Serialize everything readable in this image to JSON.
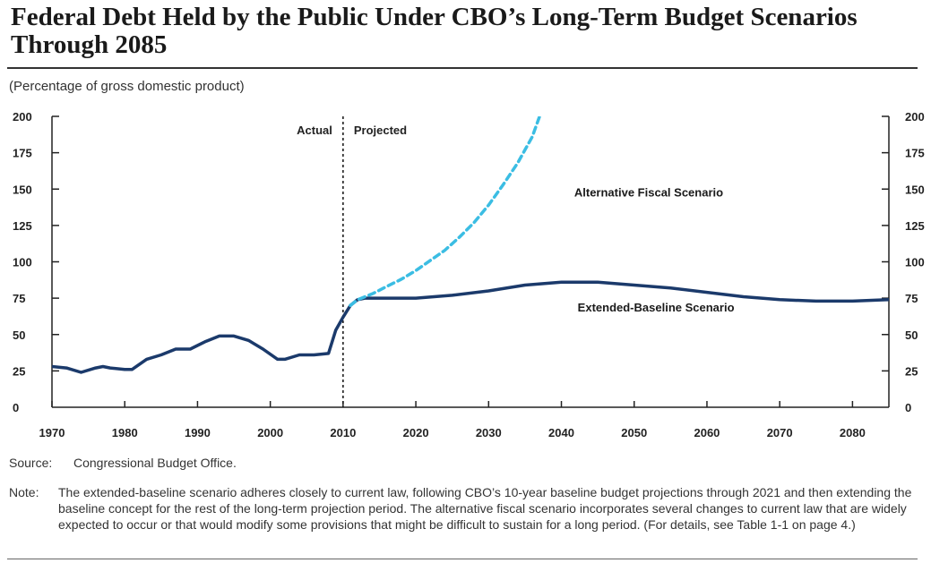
{
  "title": "Federal Debt Held by the Public Under CBO’s Long-Term Budget Scenarios Through 2085",
  "subtitle": "(Percentage of gross domestic product)",
  "source": {
    "label": "Source:",
    "text": "Congressional Budget Office."
  },
  "note": {
    "label": "Note:",
    "text": "The extended-baseline scenario adheres closely to current law, following CBO’s 10-year baseline budget projections through 2021 and then extending the baseline concept for the rest of the long-term projection period. The alternative fiscal scenario incorporates several changes to current law that are widely expected to occur or that would modify some provisions that might be difficult to sustain for a long period. (For details, see Table 1-1 on page 4.)"
  },
  "chart_data": {
    "type": "line",
    "title": "Federal Debt Held by the Public Under CBO’s Long-Term Budget Scenarios Through 2085",
    "ylabel": "(Percentage of gross domestic product)",
    "xlim": [
      1970,
      2085
    ],
    "ylim": [
      0,
      200
    ],
    "x_ticks": [
      1970,
      1980,
      1990,
      2000,
      2010,
      2020,
      2030,
      2040,
      2050,
      2060,
      2070,
      2080
    ],
    "y_ticks": [
      0,
      25,
      50,
      75,
      100,
      125,
      150,
      175,
      200
    ],
    "y_axis_both_sides": true,
    "grid": false,
    "divider": {
      "x": 2010,
      "left_label": "Actual",
      "right_label": "Projected"
    },
    "colors": {
      "baseline": "#1b3a6b",
      "alternative": "#3bbde3",
      "axis": "#222222"
    },
    "series": [
      {
        "name": "Extended-Baseline Scenario",
        "style": "solid",
        "points": [
          [
            1970,
            28
          ],
          [
            1972,
            27
          ],
          [
            1974,
            24
          ],
          [
            1976,
            27
          ],
          [
            1977,
            28
          ],
          [
            1978,
            27
          ],
          [
            1980,
            26
          ],
          [
            1981,
            26
          ],
          [
            1983,
            33
          ],
          [
            1985,
            36
          ],
          [
            1987,
            40
          ],
          [
            1989,
            40
          ],
          [
            1991,
            45
          ],
          [
            1993,
            49
          ],
          [
            1995,
            49
          ],
          [
            1997,
            46
          ],
          [
            1999,
            40
          ],
          [
            2001,
            33
          ],
          [
            2002,
            33
          ],
          [
            2004,
            36
          ],
          [
            2006,
            36
          ],
          [
            2008,
            37
          ],
          [
            2009,
            53
          ],
          [
            2010,
            62
          ],
          [
            2011,
            70
          ],
          [
            2012,
            74
          ],
          [
            2013,
            75
          ],
          [
            2015,
            75
          ],
          [
            2020,
            75
          ],
          [
            2025,
            77
          ],
          [
            2030,
            80
          ],
          [
            2035,
            84
          ],
          [
            2040,
            86
          ],
          [
            2045,
            86
          ],
          [
            2050,
            84
          ],
          [
            2055,
            82
          ],
          [
            2060,
            79
          ],
          [
            2065,
            76
          ],
          [
            2070,
            74
          ],
          [
            2075,
            73
          ],
          [
            2080,
            73
          ],
          [
            2085,
            74
          ]
        ]
      },
      {
        "name": "Alternative Fiscal Scenario",
        "style": "dashed",
        "points": [
          [
            2011,
            70
          ],
          [
            2012,
            74
          ],
          [
            2014,
            78
          ],
          [
            2016,
            83
          ],
          [
            2018,
            88
          ],
          [
            2020,
            94
          ],
          [
            2022,
            101
          ],
          [
            2024,
            108
          ],
          [
            2026,
            117
          ],
          [
            2028,
            127
          ],
          [
            2030,
            139
          ],
          [
            2032,
            153
          ],
          [
            2034,
            168
          ],
          [
            2036,
            186
          ],
          [
            2037,
            200
          ]
        ]
      }
    ],
    "annotations": [
      {
        "text": "Alternative Fiscal Scenario",
        "x": 2052,
        "y": 145,
        "series": "Alternative Fiscal Scenario"
      },
      {
        "text": "Extended-Baseline Scenario",
        "x": 2053,
        "y": 66,
        "series": "Extended-Baseline Scenario"
      }
    ]
  }
}
